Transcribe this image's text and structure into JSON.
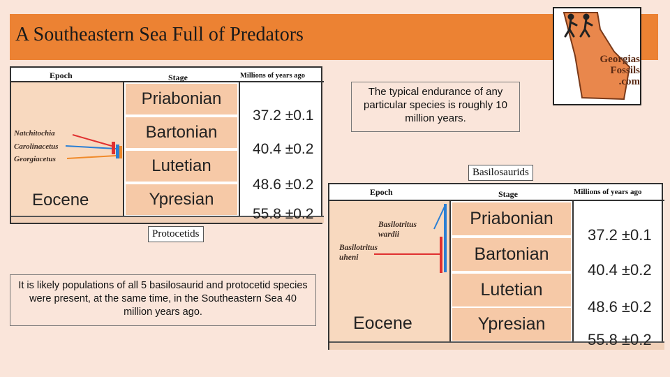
{
  "title": "A Southeastern Sea Full of Predators",
  "logo": {
    "line1": "Georgias",
    "line2": "Fossils",
    "line3": ".com"
  },
  "chart_left": {
    "headers": {
      "epoch": "Epoch",
      "stage": "Stage",
      "ma": "Millions of years ago"
    },
    "stages": [
      "Priabonian",
      "Bartonian",
      "Lutetian",
      "Ypresian"
    ],
    "ages": [
      "37.2 ±0.1",
      "40.4 ±0.2",
      "48.6 ±0.2",
      "55.8 ±0.2"
    ],
    "epoch": "Eocene",
    "species": [
      "Natchitochia",
      "Carolinacetus",
      "Georgiacetus"
    ]
  },
  "chart_right": {
    "headers": {
      "epoch": "Epoch",
      "stage": "Stage",
      "ma": "Millions of years ago"
    },
    "stages": [
      "Priabonian",
      "Bartonian",
      "Lutetian",
      "Ypresian"
    ],
    "ages": [
      "37.2 ±0.1",
      "40.4 ±0.2",
      "48.6 ±0.2",
      "55.8 ±0.2"
    ],
    "epoch": "Eocene",
    "species": [
      {
        "line1": "Basilotritus",
        "line2": "wardii"
      },
      {
        "line1": "Basilotritus",
        "line2": "uheni"
      }
    ]
  },
  "labels": {
    "protocetids": "Protocetids",
    "basilosaurids": "Basilosaurids"
  },
  "notes": {
    "endurance": "The typical endurance of any particular species is roughly 10 million years.",
    "populations": "It is likely populations of all 5 basilosaurid and protocetid species were present, at the same time, in the Southeastern Sea 40 million years ago."
  },
  "colors": {
    "title_bar": "#ec8233",
    "background": "#fae5da",
    "stage_fill": "#f6c9a7",
    "red": "#e03030",
    "blue": "#2a7fd4",
    "orange": "#f08a2a"
  }
}
